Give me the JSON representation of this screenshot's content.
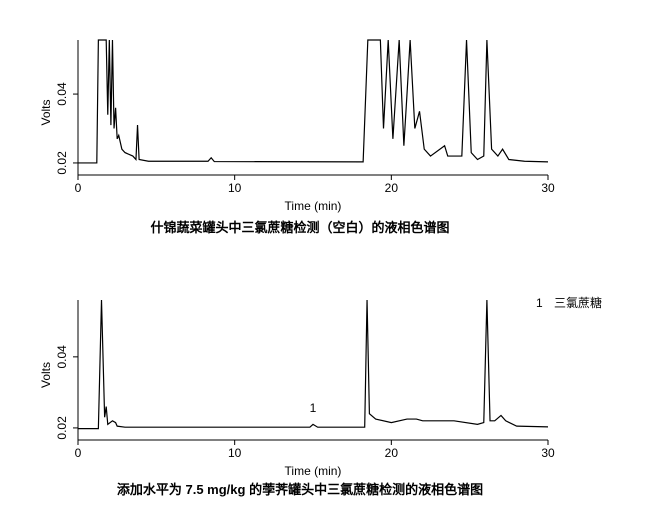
{
  "chart_data": [
    {
      "type": "line",
      "title": "什锦蔬菜罐头中三氯蔗糖检测（空白）的液相色谱图",
      "xlabel": "Time (min)",
      "ylabel": "Volts",
      "color": "#000000",
      "xlim": [
        0,
        30
      ],
      "ylim": [
        0.0165,
        0.0557
      ],
      "xticks": [
        0,
        10,
        20,
        30
      ],
      "yticks": [
        0.02,
        0.04
      ],
      "x": [
        0,
        1.2,
        1.3,
        1.8,
        1.9,
        2.0,
        2.1,
        2.2,
        2.3,
        2.4,
        2.5,
        2.6,
        2.8,
        3.0,
        3.5,
        3.7,
        3.8,
        3.9,
        4.5,
        8.3,
        8.5,
        8.7,
        18.2,
        18.5,
        19.3,
        19.5,
        19.8,
        20.1,
        20.5,
        20.8,
        21.0,
        21.2,
        21.5,
        21.8,
        22.1,
        22.5,
        23.4,
        23.6,
        24.5,
        24.8,
        25.1,
        25.5,
        25.9,
        26.1,
        26.4,
        26.8,
        27.1,
        27.5,
        28.5,
        30
      ],
      "values": [
        0.02,
        0.02,
        0.0557,
        0.0557,
        0.034,
        0.0557,
        0.031,
        0.0557,
        0.03,
        0.036,
        0.027,
        0.028,
        0.024,
        0.023,
        0.022,
        0.021,
        0.031,
        0.021,
        0.0205,
        0.0205,
        0.0215,
        0.0204,
        0.0203,
        0.0557,
        0.0557,
        0.03,
        0.0557,
        0.027,
        0.0557,
        0.025,
        0.04,
        0.0557,
        0.03,
        0.035,
        0.024,
        0.022,
        0.025,
        0.022,
        0.022,
        0.0557,
        0.023,
        0.021,
        0.022,
        0.0557,
        0.024,
        0.022,
        0.024,
        0.021,
        0.0205,
        0.0203
      ]
    },
    {
      "type": "line",
      "title": "添加水平为 7.5 mg/kg 的荸荠罐头中三氯蔗糖检测的液相色谱图",
      "xlabel": "Time (min)",
      "ylabel": "Volts",
      "color": "#000000",
      "xlim": [
        0,
        30
      ],
      "ylim": [
        0.0166,
        0.056
      ],
      "xticks": [
        0,
        10,
        20,
        30
      ],
      "yticks": [
        0.02,
        0.04
      ],
      "x": [
        0,
        1.3,
        1.5,
        1.7,
        1.8,
        1.9,
        2.2,
        2.4,
        2.5,
        3.0,
        14.8,
        15.0,
        15.3,
        18.3,
        18.45,
        18.6,
        19.0,
        20.0,
        21.0,
        21.6,
        22.0,
        24.0,
        25.5,
        25.9,
        26.1,
        26.3,
        26.6,
        27.0,
        27.3,
        28.0,
        30
      ],
      "values": [
        0.0198,
        0.0198,
        0.056,
        0.023,
        0.026,
        0.021,
        0.022,
        0.0215,
        0.0205,
        0.0202,
        0.0202,
        0.021,
        0.0202,
        0.0202,
        0.056,
        0.024,
        0.0225,
        0.0215,
        0.0225,
        0.0225,
        0.022,
        0.022,
        0.021,
        0.0215,
        0.056,
        0.022,
        0.022,
        0.0235,
        0.022,
        0.0205,
        0.0203
      ],
      "annotation": {
        "text": "1",
        "x": 15.0,
        "y": 0.0222
      },
      "legend": {
        "number": "1",
        "name": "三氯蔗糖"
      }
    }
  ]
}
